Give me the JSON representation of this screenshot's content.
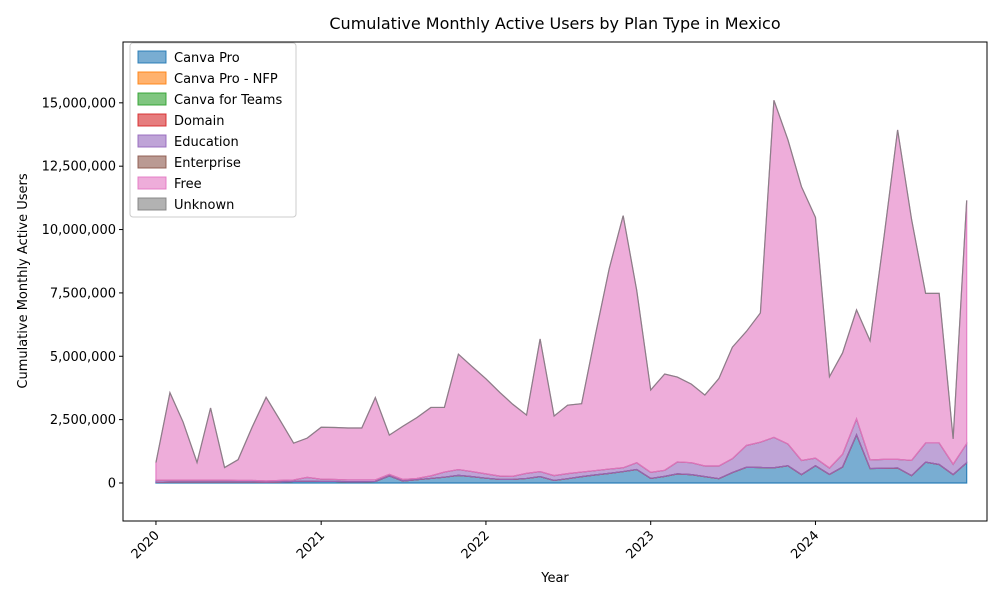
{
  "chart_data": {
    "type": "area",
    "stacked": true,
    "title": "Cumulative Monthly Active Users by Plan Type in Mexico",
    "xlabel": "Year",
    "ylabel": "Cumulative Monthly Active Users",
    "ylim": [
      -1500000,
      17400000
    ],
    "xlim": [
      "2019-10-20",
      "2025-01-15"
    ],
    "yticks": [
      0,
      2500000,
      5000000,
      7500000,
      10000000,
      12500000,
      15000000
    ],
    "ytick_labels": [
      "0",
      "2,500,000",
      "5,000,000",
      "7,500,000",
      "10,000,000",
      "12,500,000",
      "15,000,000"
    ],
    "xticks": [
      "2020-01-01",
      "2021-01-01",
      "2022-01-01",
      "2023-01-01",
      "2024-01-01"
    ],
    "xtick_labels": [
      "2020",
      "2021",
      "2022",
      "2023",
      "2024"
    ],
    "grid": false,
    "legend_position": "top-left",
    "months": [
      "2020-01",
      "2020-02",
      "2020-03",
      "2020-04",
      "2020-05",
      "2020-06",
      "2020-07",
      "2020-08",
      "2020-09",
      "2020-10",
      "2020-11",
      "2020-12",
      "2021-01",
      "2021-02",
      "2021-03",
      "2021-04",
      "2021-05",
      "2021-06",
      "2021-07",
      "2021-08",
      "2021-09",
      "2021-10",
      "2021-11",
      "2021-12",
      "2022-01",
      "2022-02",
      "2022-03",
      "2022-04",
      "2022-05",
      "2022-06",
      "2022-07",
      "2022-08",
      "2022-09",
      "2022-10",
      "2022-11",
      "2022-12",
      "2023-01",
      "2023-02",
      "2023-03",
      "2023-04",
      "2023-05",
      "2023-06",
      "2023-07",
      "2023-08",
      "2023-09",
      "2023-10",
      "2023-11",
      "2023-12",
      "2024-01",
      "2024-02",
      "2024-03",
      "2024-04",
      "2024-05",
      "2024-06",
      "2024-07",
      "2024-08",
      "2024-09",
      "2024-10",
      "2024-11",
      "2024-12"
    ],
    "series": [
      {
        "name": "Canva Pro",
        "color": "#1f77b4",
        "values": [
          30000,
          40000,
          40000,
          40000,
          40000,
          40000,
          40000,
          40000,
          30000,
          40000,
          60000,
          70000,
          60000,
          60000,
          50000,
          50000,
          60000,
          280000,
          80000,
          130000,
          180000,
          230000,
          300000,
          250000,
          190000,
          140000,
          140000,
          180000,
          250000,
          100000,
          170000,
          250000,
          320000,
          380000,
          450000,
          530000,
          180000,
          260000,
          360000,
          330000,
          250000,
          170000,
          410000,
          620000,
          610000,
          600000,
          680000,
          330000,
          680000,
          340000,
          630000,
          1900000,
          570000,
          580000,
          590000,
          290000,
          820000,
          730000,
          330000,
          800000
        ]
      },
      {
        "name": "Canva Pro - NFP",
        "color": "#ff7f0e",
        "values": [
          0,
          0,
          0,
          0,
          0,
          0,
          0,
          0,
          0,
          0,
          0,
          0,
          0,
          0,
          0,
          0,
          0,
          0,
          0,
          0,
          0,
          0,
          0,
          0,
          0,
          0,
          0,
          0,
          0,
          0,
          0,
          0,
          0,
          0,
          0,
          0,
          0,
          0,
          0,
          0,
          0,
          0,
          0,
          0,
          0,
          0,
          0,
          0,
          0,
          0,
          0,
          0,
          0,
          0,
          0,
          0,
          0,
          0,
          0,
          0
        ]
      },
      {
        "name": "Canva for Teams",
        "color": "#2ca02c",
        "values": [
          0,
          0,
          0,
          0,
          0,
          0,
          0,
          0,
          0,
          0,
          0,
          0,
          0,
          0,
          0,
          0,
          0,
          0,
          0,
          0,
          0,
          0,
          0,
          0,
          0,
          0,
          0,
          0,
          0,
          0,
          0,
          0,
          0,
          0,
          0,
          0,
          0,
          0,
          0,
          0,
          0,
          0,
          0,
          0,
          0,
          0,
          0,
          0,
          0,
          0,
          0,
          0,
          0,
          0,
          0,
          0,
          0,
          0,
          0,
          0
        ]
      },
      {
        "name": "Domain",
        "color": "#d62728",
        "values": [
          0,
          0,
          0,
          0,
          0,
          0,
          0,
          0,
          0,
          0,
          0,
          0,
          0,
          0,
          0,
          0,
          0,
          0,
          0,
          0,
          0,
          0,
          0,
          0,
          0,
          0,
          0,
          0,
          0,
          0,
          0,
          0,
          0,
          0,
          0,
          0,
          0,
          0,
          0,
          0,
          0,
          0,
          0,
          0,
          0,
          0,
          0,
          0,
          0,
          0,
          0,
          0,
          0,
          0,
          0,
          0,
          0,
          0,
          0,
          0
        ]
      },
      {
        "name": "Education",
        "color": "#9467bd",
        "values": [
          80000,
          70000,
          70000,
          70000,
          70000,
          70000,
          60000,
          60000,
          50000,
          60000,
          60000,
          150000,
          90000,
          80000,
          70000,
          70000,
          60000,
          60000,
          60000,
          50000,
          100000,
          200000,
          230000,
          200000,
          170000,
          130000,
          120000,
          200000,
          200000,
          190000,
          200000,
          180000,
          170000,
          170000,
          150000,
          270000,
          240000,
          240000,
          470000,
          470000,
          420000,
          500000,
          550000,
          860000,
          1000000,
          1200000,
          860000,
          560000,
          300000,
          250000,
          500000,
          630000,
          340000,
          350000,
          340000,
          600000,
          760000,
          850000,
          410000,
          750000
        ]
      },
      {
        "name": "Enterprise",
        "color": "#8c564b",
        "values": [
          0,
          0,
          0,
          0,
          0,
          0,
          0,
          0,
          0,
          0,
          0,
          0,
          0,
          0,
          0,
          0,
          0,
          0,
          0,
          0,
          0,
          0,
          0,
          0,
          0,
          0,
          0,
          0,
          0,
          0,
          0,
          0,
          0,
          0,
          0,
          0,
          0,
          0,
          0,
          0,
          0,
          0,
          0,
          0,
          0,
          0,
          0,
          0,
          0,
          0,
          0,
          0,
          0,
          0,
          0,
          0,
          0,
          0,
          0,
          0
        ]
      },
      {
        "name": "Free",
        "color": "#e377c2",
        "values": [
          700000,
          3450000,
          2300000,
          700000,
          2850000,
          500000,
          820000,
          2100000,
          3300000,
          2400000,
          1450000,
          1550000,
          2050000,
          2050000,
          2050000,
          2050000,
          3250000,
          1550000,
          2100000,
          2400000,
          2700000,
          2550000,
          4550000,
          4150000,
          3750000,
          3300000,
          2850000,
          2300000,
          5230000,
          2350000,
          2700000,
          2700000,
          5400000,
          7900000,
          9950000,
          6800000,
          3250000,
          3800000,
          3350000,
          3100000,
          2800000,
          3450000,
          4400000,
          4500000,
          5100000,
          13300000,
          12000000,
          10800000,
          9500000,
          3600000,
          4000000,
          4300000,
          4700000,
          8800000,
          13000000,
          9500000,
          5900000,
          5900000,
          1000000,
          9600000
        ]
      },
      {
        "name": "Unknown",
        "color": "#7f7f7f",
        "values": [
          0,
          0,
          0,
          0,
          0,
          0,
          0,
          0,
          0,
          0,
          0,
          0,
          0,
          0,
          0,
          0,
          0,
          0,
          0,
          0,
          0,
          0,
          0,
          0,
          0,
          0,
          0,
          0,
          0,
          0,
          0,
          0,
          0,
          0,
          0,
          0,
          0,
          0,
          0,
          0,
          0,
          0,
          0,
          0,
          0,
          0,
          0,
          0,
          0,
          0,
          0,
          0,
          0,
          0,
          0,
          0,
          0,
          0,
          0,
          0
        ]
      }
    ]
  }
}
